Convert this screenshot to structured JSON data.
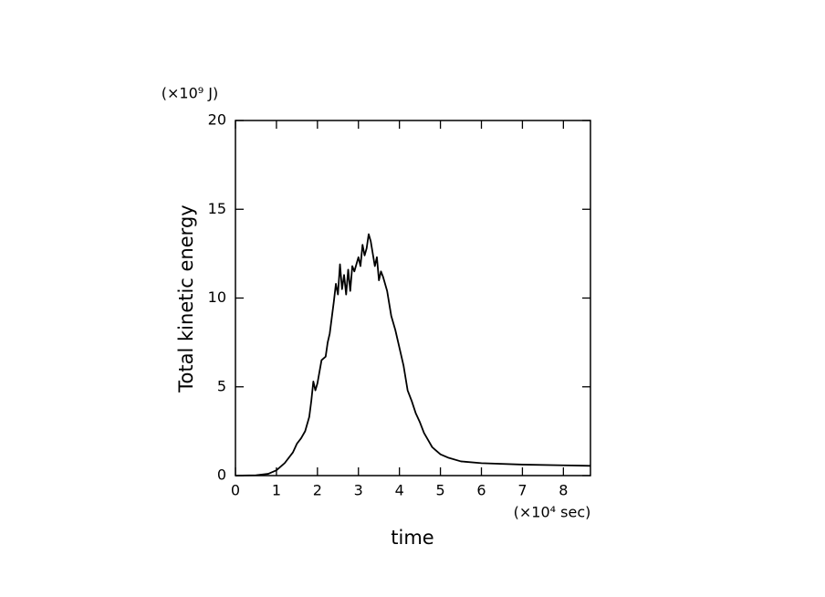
{
  "chart_data": {
    "type": "line",
    "y_label": "Total kinetic energy",
    "x_label": "time",
    "y_unit": "(×10⁹ J)",
    "x_unit": "(×10⁴ sec)",
    "xlim": [
      0,
      8.66
    ],
    "ylim": [
      0,
      20
    ],
    "xticks": [
      0,
      1,
      2,
      3,
      4,
      5,
      6,
      7,
      8
    ],
    "yticks": [
      0,
      5,
      10,
      15,
      20
    ],
    "color": "#000000",
    "x": [
      0,
      0.5,
      0.8,
      1.0,
      1.2,
      1.4,
      1.5,
      1.6,
      1.7,
      1.8,
      1.85,
      1.9,
      1.95,
      2.0,
      2.1,
      2.2,
      2.25,
      2.3,
      2.4,
      2.45,
      2.5,
      2.55,
      2.6,
      2.65,
      2.7,
      2.75,
      2.8,
      2.85,
      2.9,
      3.0,
      3.05,
      3.1,
      3.15,
      3.2,
      3.25,
      3.3,
      3.4,
      3.45,
      3.5,
      3.55,
      3.6,
      3.7,
      3.8,
      3.9,
      4.0,
      4.1,
      4.2,
      4.3,
      4.4,
      4.5,
      4.6,
      4.7,
      4.8,
      4.9,
      5.0,
      5.2,
      5.5,
      6.0,
      7.0,
      8.0,
      8.66
    ],
    "values": [
      0,
      0.02,
      0.1,
      0.3,
      0.7,
      1.3,
      1.8,
      2.1,
      2.5,
      3.3,
      4.2,
      5.3,
      4.8,
      5.2,
      6.5,
      6.7,
      7.5,
      8.0,
      9.8,
      10.8,
      10.2,
      11.9,
      10.5,
      11.3,
      10.2,
      11.6,
      10.4,
      11.8,
      11.5,
      12.3,
      11.8,
      13.0,
      12.4,
      12.8,
      13.6,
      13.2,
      11.8,
      12.3,
      11.0,
      11.5,
      11.2,
      10.4,
      9.0,
      8.2,
      7.2,
      6.2,
      4.8,
      4.2,
      3.5,
      3.0,
      2.4,
      2.0,
      1.6,
      1.4,
      1.2,
      1.0,
      0.8,
      0.7,
      0.62,
      0.58,
      0.55
    ]
  }
}
